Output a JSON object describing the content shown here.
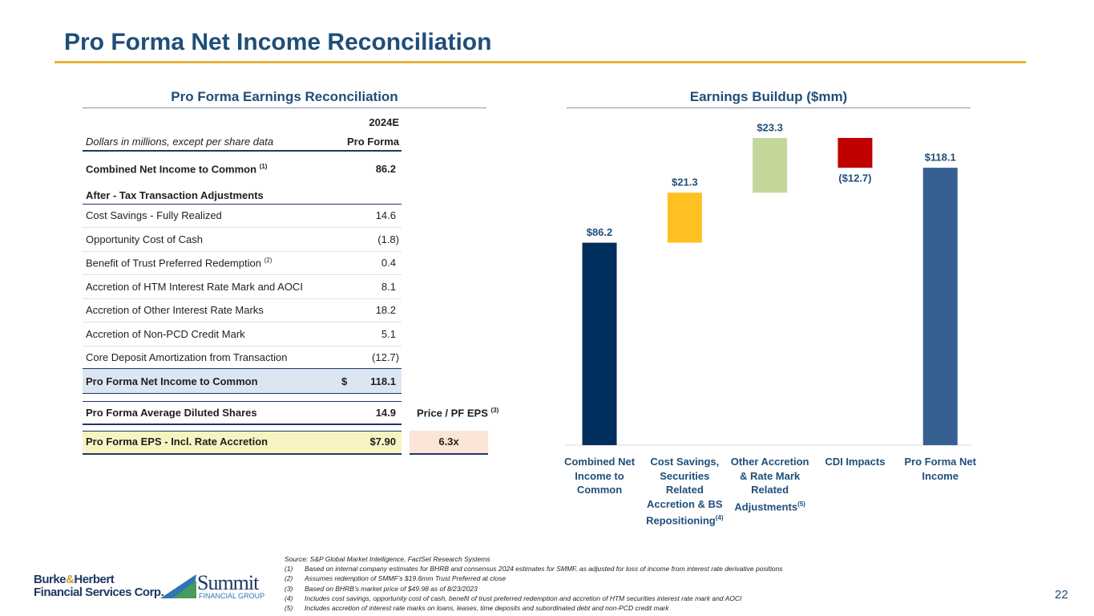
{
  "header": {
    "title": "Pro Forma Net Income Reconciliation"
  },
  "table": {
    "title": "Pro Forma Earnings Reconciliation",
    "year": "2024E",
    "caption": "Dollars in millions, except per share data",
    "column": "Pro Forma",
    "combined": {
      "label": "Combined Net Income to Common",
      "note": "(1)",
      "value": "86.2"
    },
    "section": "After - Tax Transaction Adjustments",
    "rows": [
      {
        "label": "Cost Savings - Fully Realized",
        "note": null,
        "value": "14.6"
      },
      {
        "label": "Opportunity Cost of Cash",
        "note": null,
        "value": "(1.8)"
      },
      {
        "label": "Benefit of Trust Preferred Redemption",
        "note": "(2)",
        "value": "0.4"
      },
      {
        "label": "Accretion of HTM Interest Rate Mark and AOCI",
        "note": null,
        "value": "8.1"
      },
      {
        "label": "Accretion of Other Interest Rate Marks",
        "note": null,
        "value": "18.2"
      },
      {
        "label": "Accretion of Non-PCD Credit Mark",
        "note": null,
        "value": "5.1"
      },
      {
        "label": "Core Deposit Amortization from Transaction",
        "note": null,
        "value": "(12.7)"
      }
    ],
    "total": {
      "label": "Pro Forma Net Income to Common",
      "currency": "$",
      "value": "118.1"
    },
    "shares": {
      "label": "Pro Forma Average Diluted Shares",
      "value": "14.9"
    },
    "ratio_header": {
      "label": "Price / PF EPS",
      "note": "(3)"
    },
    "eps": {
      "label": "Pro Forma EPS - Incl. Rate Accretion",
      "value": "$7.90",
      "ratio": "6.3x"
    }
  },
  "chart_data": {
    "type": "waterfall",
    "title": "Earnings Buildup ($mm)",
    "categories": [
      "Combined Net Income to Common",
      "Cost Savings, Securities Related Accretion & BS Repositioning",
      "Other Accretion & Rate Mark Related Adjustments",
      "CDI Impacts",
      "Pro Forma Net Income"
    ],
    "category_notes": [
      null,
      "(4)",
      "(5)",
      null,
      null
    ],
    "values": [
      86.2,
      21.3,
      23.3,
      -12.7,
      118.1
    ],
    "value_labels": [
      "$86.2",
      "$21.3",
      "$23.3",
      "($12.7)",
      "$118.1"
    ],
    "colors": [
      "#002e5d",
      "#ffc021",
      "#c4d79b",
      "#c00000",
      "#355f91"
    ]
  },
  "footer": {
    "source": "Source: S&P Global Market Intelligence, FactSet Research Systems",
    "notes": [
      {
        "mark": "(1)",
        "text": "Based on internal company estimates for BHRB and consensus 2024 estimates for SMMF, as adjusted for loss of income from interest rate derivative positions"
      },
      {
        "mark": "(2)",
        "text": "Assumes redemption of SMMF’s $19.6mm Trust Preferred at close"
      },
      {
        "mark": "(3)",
        "text": "Based on BHRB’s market price of $49.98 as of 8/23/2023"
      },
      {
        "mark": "(4)",
        "text": "Includes cost savings, opportunity cost of cash, benefit of trust preferred redemption and accretion of HTM securities interest rate mark and AOCI"
      },
      {
        "mark": "(5)",
        "text": "Includes accretion of interest rate marks on loans, leases, time deposits and subordinated debt and non-PCD credit mark"
      }
    ],
    "logo1a": "Burke",
    "logo1b": "&",
    "logo1c": "Herbert",
    "logo1d": "Financial Services Corp.",
    "logo2a": "Summit",
    "logo2b": "FINANCIAL GROUP",
    "page": "22"
  }
}
